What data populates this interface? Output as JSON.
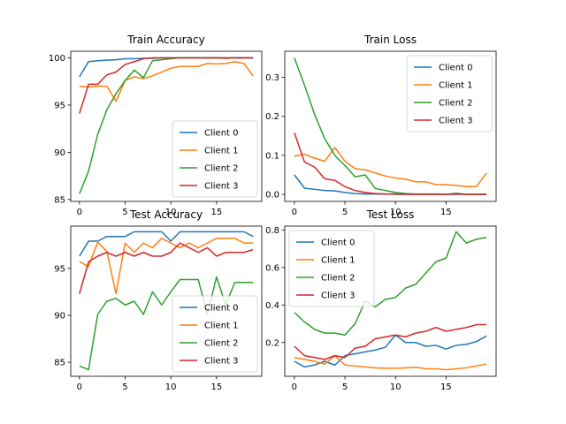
{
  "chart_data": [
    {
      "type": "line",
      "title": "Train Accuracy",
      "xlim": [
        -0.95,
        19.95
      ],
      "ylim": [
        84.8,
        100.7
      ],
      "xticks": [
        0,
        5,
        10,
        15
      ],
      "yticks": [
        85,
        90,
        95,
        100
      ],
      "legend": "lower-right",
      "x": [
        0,
        1,
        2,
        3,
        4,
        5,
        6,
        7,
        8,
        9,
        10,
        11,
        12,
        13,
        14,
        15,
        16,
        17,
        18,
        19
      ],
      "series": [
        {
          "name": "Client 0",
          "color": "#1f77b4",
          "values": [
            98.0,
            99.6,
            99.7,
            99.75,
            99.8,
            99.9,
            99.9,
            99.95,
            99.95,
            100,
            100,
            100,
            100,
            100,
            100,
            100,
            100,
            100,
            100,
            100
          ]
        },
        {
          "name": "Client 1",
          "color": "#ff7f0e",
          "values": [
            97.0,
            96.9,
            97.0,
            97.0,
            95.4,
            97.6,
            98.0,
            97.8,
            98.1,
            98.5,
            98.9,
            99.1,
            99.1,
            99.1,
            99.4,
            99.35,
            99.4,
            99.6,
            99.4,
            98.1
          ]
        },
        {
          "name": "Client 2",
          "color": "#2ca02c",
          "values": [
            85.6,
            88.0,
            91.9,
            94.5,
            96.2,
            97.6,
            98.7,
            97.9,
            99.7,
            99.8,
            99.9,
            100,
            100,
            100,
            100,
            100,
            100,
            100,
            100,
            100
          ]
        },
        {
          "name": "Client 3",
          "color": "#d62728",
          "values": [
            94.1,
            97.2,
            97.2,
            98.2,
            98.5,
            99.3,
            99.6,
            99.9,
            100,
            100,
            100,
            100,
            100,
            100,
            100,
            100,
            99.95,
            100,
            100,
            100
          ]
        }
      ]
    },
    {
      "type": "line",
      "title": "Train Loss",
      "xlim": [
        -0.95,
        19.95
      ],
      "ylim": [
        -0.018,
        0.367
      ],
      "xticks": [
        0,
        5,
        10,
        15
      ],
      "yticks": [
        0.0,
        0.1,
        0.2,
        0.3
      ],
      "ytick_labels": [
        "0.0",
        "0.1",
        "0.2",
        "0.3"
      ],
      "legend": "upper-right",
      "x": [
        0,
        1,
        2,
        3,
        4,
        5,
        6,
        7,
        8,
        9,
        10,
        11,
        12,
        13,
        14,
        15,
        16,
        17,
        18,
        19
      ],
      "series": [
        {
          "name": "Client 0",
          "color": "#1f77b4",
          "values": [
            0.05,
            0.016,
            0.013,
            0.01,
            0.009,
            0.005,
            0.002,
            0.001,
            0.001,
            0.001,
            0,
            0,
            0,
            0,
            0,
            0,
            0,
            0,
            0,
            0
          ]
        },
        {
          "name": "Client 1",
          "color": "#ff7f0e",
          "values": [
            0.098,
            0.103,
            0.093,
            0.085,
            0.12,
            0.085,
            0.066,
            0.063,
            0.055,
            0.047,
            0.042,
            0.039,
            0.032,
            0.032,
            0.025,
            0.025,
            0.023,
            0.02,
            0.02,
            0.055
          ]
        },
        {
          "name": "Client 2",
          "color": "#2ca02c",
          "values": [
            0.35,
            0.28,
            0.205,
            0.143,
            0.1,
            0.074,
            0.045,
            0.05,
            0.015,
            0.01,
            0.005,
            0.002,
            0.001,
            0.001,
            0.001,
            0,
            0.003,
            0,
            0,
            0
          ]
        },
        {
          "name": "Client 3",
          "color": "#d62728",
          "values": [
            0.158,
            0.083,
            0.07,
            0.04,
            0.036,
            0.02,
            0.01,
            0.005,
            0.002,
            0.001,
            0.001,
            0,
            0,
            0,
            0,
            0,
            0.001,
            0,
            0,
            0
          ]
        }
      ]
    },
    {
      "type": "line",
      "title": "Test Accuracy",
      "xlim": [
        -0.95,
        19.95
      ],
      "ylim": [
        83.5,
        99.5
      ],
      "xticks": [
        0,
        5,
        10,
        15
      ],
      "yticks": [
        85,
        90,
        95
      ],
      "legend": "lower-right",
      "x": [
        0,
        1,
        2,
        3,
        4,
        5,
        6,
        7,
        8,
        9,
        10,
        11,
        12,
        13,
        14,
        15,
        16,
        17,
        18,
        19
      ],
      "series": [
        {
          "name": "Client 0",
          "color": "#1f77b4",
          "values": [
            96.3,
            97.9,
            97.9,
            98.4,
            98.4,
            98.4,
            98.9,
            98.9,
            98.9,
            98.9,
            97.9,
            98.9,
            98.9,
            98.9,
            98.9,
            98.9,
            98.9,
            98.9,
            98.9,
            98.4
          ]
        },
        {
          "name": "Client 1",
          "color": "#ff7f0e",
          "values": [
            95.7,
            95.2,
            97.8,
            96.8,
            92.3,
            97.7,
            96.7,
            97.7,
            97.2,
            98.2,
            97.7,
            97.2,
            97.7,
            97.2,
            97.7,
            98.2,
            98.2,
            98.2,
            97.7,
            97.7
          ]
        },
        {
          "name": "Client 2",
          "color": "#2ca02c",
          "values": [
            84.6,
            84.2,
            90.1,
            91.5,
            91.8,
            91.1,
            91.5,
            90.1,
            92.5,
            91.1,
            92.5,
            93.8,
            93.8,
            93.8,
            90.1,
            94.1,
            91.1,
            93.5,
            93.5,
            93.5
          ]
        },
        {
          "name": "Client 3",
          "color": "#d62728",
          "values": [
            92.3,
            95.7,
            96.3,
            96.7,
            96.3,
            96.7,
            96.3,
            96.7,
            96.3,
            96.3,
            96.7,
            97.7,
            97.2,
            96.7,
            97.2,
            96.3,
            96.7,
            96.7,
            96.7,
            97.0
          ]
        }
      ]
    },
    {
      "type": "line",
      "title": "Test Loss",
      "xlim": [
        -0.95,
        19.95
      ],
      "ylim": [
        0.02,
        0.82
      ],
      "xticks": [
        0,
        5,
        10,
        15
      ],
      "yticks": [
        0.2,
        0.4,
        0.6,
        0.8
      ],
      "ytick_labels": [
        "0.2",
        "0.4",
        "0.6",
        "0.8"
      ],
      "legend": "upper-left",
      "x": [
        0,
        1,
        2,
        3,
        4,
        5,
        6,
        7,
        8,
        9,
        10,
        11,
        12,
        13,
        14,
        15,
        16,
        17,
        18,
        19
      ],
      "series": [
        {
          "name": "Client 0",
          "color": "#1f77b4",
          "values": [
            0.1,
            0.07,
            0.08,
            0.1,
            0.08,
            0.13,
            0.14,
            0.15,
            0.16,
            0.175,
            0.24,
            0.2,
            0.2,
            0.18,
            0.185,
            0.165,
            0.185,
            0.19,
            0.205,
            0.235
          ]
        },
        {
          "name": "Client 1",
          "color": "#ff7f0e",
          "values": [
            0.12,
            0.11,
            0.1,
            0.085,
            0.13,
            0.08,
            0.075,
            0.07,
            0.065,
            0.063,
            0.063,
            0.065,
            0.068,
            0.06,
            0.06,
            0.055,
            0.06,
            0.065,
            0.075,
            0.085
          ]
        },
        {
          "name": "Client 2",
          "color": "#2ca02c",
          "values": [
            0.36,
            0.31,
            0.27,
            0.25,
            0.25,
            0.24,
            0.3,
            0.42,
            0.39,
            0.43,
            0.44,
            0.49,
            0.51,
            0.57,
            0.63,
            0.65,
            0.79,
            0.73,
            0.75,
            0.76
          ]
        },
        {
          "name": "Client 3",
          "color": "#d62728",
          "values": [
            0.18,
            0.13,
            0.12,
            0.11,
            0.13,
            0.12,
            0.17,
            0.18,
            0.22,
            0.23,
            0.24,
            0.23,
            0.25,
            0.26,
            0.28,
            0.26,
            0.27,
            0.28,
            0.295,
            0.295
          ]
        }
      ]
    }
  ]
}
